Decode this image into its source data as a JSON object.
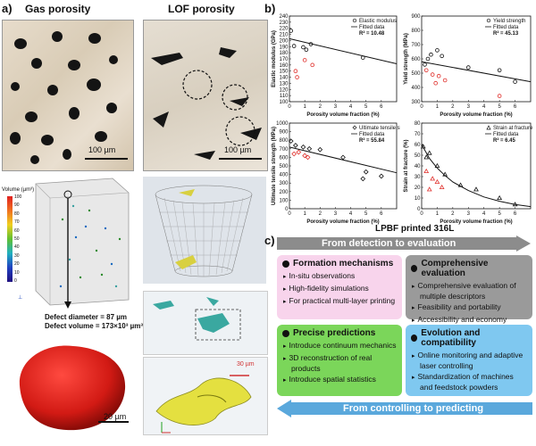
{
  "panel_a": {
    "letter": "a)",
    "gas_title": "Gas porosity",
    "lof_title": "LOF porosity",
    "scale_gas": "100 µm",
    "scale_lof": "100 µm",
    "colorbar_title": "Volume (µm³)",
    "colorbar_ticks": [
      "100",
      "90",
      "80",
      "70",
      "60",
      "50",
      "40",
      "30",
      "20",
      "10",
      "0"
    ],
    "defect_diameter": "Defect diameter = 87 µm",
    "defect_volume": "Defect volume = 173×10³ µm³",
    "scale_defect": "20 µm",
    "scale_lof_zoom": "30 µm"
  },
  "panel_b": {
    "letter": "b)",
    "caption": "LPBF printed 316L"
  },
  "chart_data": [
    {
      "type": "scatter",
      "legend": [
        "Elastic modulus",
        "Fitted data"
      ],
      "r2": "R² = 10.48",
      "xlabel": "Porosity volume fraction (%)",
      "ylabel": "Elastic modulus (GPa)",
      "xlim": [
        0,
        7
      ],
      "ylim": [
        100,
        240
      ],
      "yticks": [
        100,
        110,
        120,
        130,
        140,
        150,
        160,
        170,
        180,
        190,
        200,
        210,
        220,
        230,
        240
      ],
      "xticks": [
        0,
        1,
        2,
        3,
        4,
        5,
        6
      ],
      "points_black": [
        [
          0.1,
          216
        ],
        [
          0.3,
          191
        ],
        [
          0.9,
          189
        ],
        [
          1.1,
          185
        ],
        [
          1.4,
          194
        ],
        [
          4.8,
          172
        ]
      ],
      "points_red": [
        [
          0.5,
          140
        ],
        [
          1.0,
          168
        ],
        [
          1.5,
          160
        ],
        [
          0.4,
          150
        ]
      ],
      "fit": [
        [
          0,
          203
        ],
        [
          7,
          162
        ]
      ]
    },
    {
      "type": "scatter",
      "legend": [
        "Yield strength",
        "Fitted data"
      ],
      "r2": "R² = 45.13",
      "xlabel": "Porosity volume fraction (%)",
      "ylabel": "Yield strength (MPa)",
      "xlim": [
        0,
        7
      ],
      "ylim": [
        300,
        900
      ],
      "yticks": [
        300,
        400,
        500,
        600,
        700,
        800,
        900
      ],
      "xticks": [
        0,
        1,
        2,
        3,
        4,
        5,
        6
      ],
      "points_black": [
        [
          0.2,
          560
        ],
        [
          0.4,
          600
        ],
        [
          0.6,
          630
        ],
        [
          1.0,
          660
        ],
        [
          1.3,
          620
        ],
        [
          3.0,
          540
        ],
        [
          5.0,
          520
        ],
        [
          6.0,
          440
        ]
      ],
      "points_red": [
        [
          0.3,
          520
        ],
        [
          0.7,
          490
        ],
        [
          1.1,
          480
        ],
        [
          1.5,
          450
        ],
        [
          0.9,
          430
        ],
        [
          5.0,
          340
        ]
      ],
      "fit": [
        [
          0,
          580
        ],
        [
          7,
          440
        ]
      ]
    },
    {
      "type": "scatter",
      "legend": [
        "Ultimate tensile strength",
        "Fitted data"
      ],
      "r2": "R² = 55.84",
      "xlabel": "Porosity volume fraction (%)",
      "ylabel": "Ultimate tensile strength (MPa)",
      "xlim": [
        0,
        7
      ],
      "ylim": [
        0,
        1000
      ],
      "yticks": [
        0,
        100,
        200,
        300,
        400,
        500,
        600,
        700,
        800,
        900,
        1000
      ],
      "xticks": [
        0,
        1,
        2,
        3,
        4,
        5,
        6
      ],
      "points_black": [
        [
          0.1,
          790
        ],
        [
          0.4,
          740
        ],
        [
          0.9,
          720
        ],
        [
          1.3,
          700
        ],
        [
          2.0,
          690
        ],
        [
          3.5,
          600
        ],
        [
          5.0,
          430
        ],
        [
          6.0,
          380
        ],
        [
          4.8,
          350
        ]
      ],
      "points_red": [
        [
          0.3,
          640
        ],
        [
          0.6,
          660
        ],
        [
          1.0,
          620
        ],
        [
          1.2,
          600
        ]
      ],
      "fit": [
        [
          0,
          720
        ],
        [
          7,
          420
        ]
      ]
    },
    {
      "type": "scatter",
      "legend": [
        "Strain at fracture",
        "Fitted data"
      ],
      "r2": "R² = 6.45",
      "xlabel": "Porosity volume fraction (%)",
      "ylabel": "Strain at fracture (%)",
      "xlim": [
        0,
        7
      ],
      "ylim": [
        0,
        80
      ],
      "yticks": [
        0,
        10,
        20,
        30,
        40,
        50,
        60,
        70,
        80
      ],
      "xticks": [
        0,
        1,
        2,
        3,
        4,
        5,
        6
      ],
      "points_black": [
        [
          0.1,
          58
        ],
        [
          0.3,
          48
        ],
        [
          0.5,
          52
        ],
        [
          1.0,
          40
        ],
        [
          1.5,
          32
        ],
        [
          2.5,
          22
        ],
        [
          3.5,
          18
        ],
        [
          5.0,
          10
        ],
        [
          6.0,
          4
        ]
      ],
      "points_red": [
        [
          0.3,
          35
        ],
        [
          0.7,
          28
        ],
        [
          1.0,
          25
        ],
        [
          1.3,
          20
        ],
        [
          0.5,
          18
        ]
      ],
      "fit_curve": [
        [
          0,
          60
        ],
        [
          0.5,
          47
        ],
        [
          1,
          38
        ],
        [
          1.5,
          31
        ],
        [
          2,
          25
        ],
        [
          3,
          17
        ],
        [
          4,
          11
        ],
        [
          5,
          7
        ],
        [
          6,
          4
        ],
        [
          7,
          2
        ]
      ]
    }
  ],
  "panel_c": {
    "letter": "c)",
    "top_arrow": "From detection to evaluation",
    "bottom_arrow": "From controlling to predicting",
    "boxes": [
      {
        "title": "Formation mechanisms",
        "items": [
          "In-situ observations",
          "High-fidelity simulations",
          "For practical multi-layer printing"
        ],
        "color": "#f8d4ec"
      },
      {
        "title": "Comprehensive evaluation",
        "items": [
          "Comprehensive evaluation of multiple descriptors",
          "Feasibility and portability",
          "Accessibility and economy"
        ],
        "color": "#9a9a9a"
      },
      {
        "title": "Precise predictions",
        "items": [
          "Introduce continuum mechanics",
          "3D reconstruction of real products",
          "Introduce spatial statistics"
        ],
        "color": "#7bd65a"
      },
      {
        "title": "Evolution and compatibility",
        "items": [
          "Online monitoring and adaptive laser controlling",
          "Standardization of machines and feedstock powders"
        ],
        "color": "#7fc8f0"
      }
    ]
  },
  "colors": {
    "red_point": "#e0302c",
    "defect_red": "#e0201c",
    "arrow_gray": "#8c8c8c",
    "arrow_blue": "#5aa8dc"
  }
}
